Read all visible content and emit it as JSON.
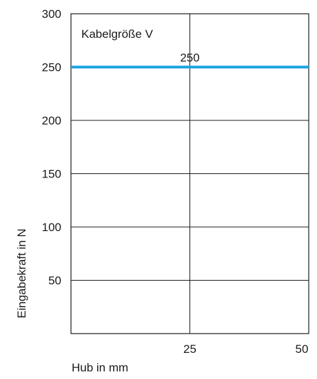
{
  "chart_data": {
    "type": "line",
    "title": "",
    "xlabel": "Hub in mm",
    "ylabel": "Eingabekraft in N",
    "xlim": [
      0,
      50
    ],
    "ylim": [
      0,
      300
    ],
    "x_ticks": [
      25,
      50
    ],
    "y_ticks": [
      50,
      100,
      150,
      200,
      250,
      300
    ],
    "grid": true,
    "annotation": "Kabelgröße V",
    "series": [
      {
        "x": [
          0,
          50
        ],
        "values": [
          250,
          250
        ],
        "color": "#1aa3e0",
        "data_label": "250"
      }
    ]
  }
}
